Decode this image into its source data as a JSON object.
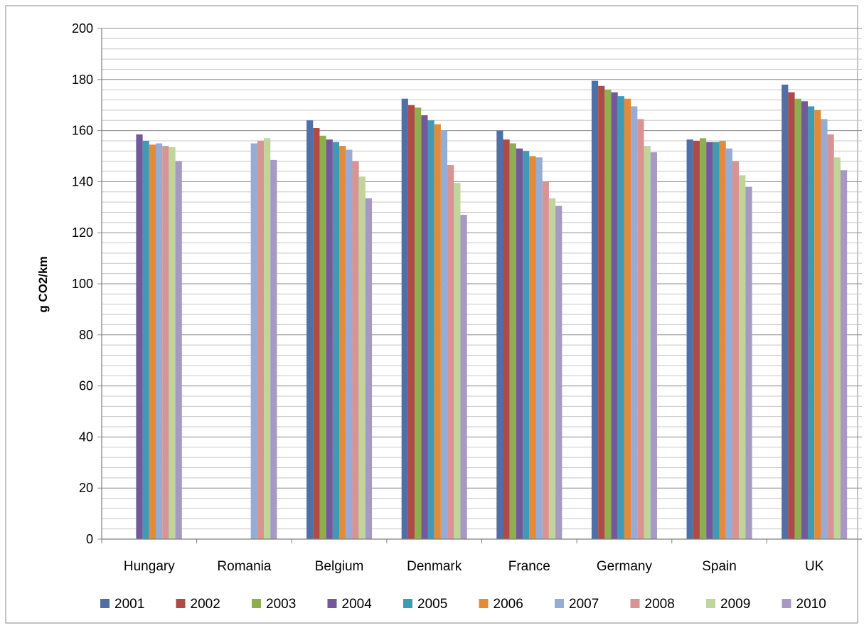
{
  "chart_data": {
    "type": "bar",
    "title": "",
    "ylabel": "g CO2/km",
    "xlabel": "",
    "ylim": [
      0,
      200
    ],
    "yticks": [
      0,
      20,
      40,
      60,
      80,
      100,
      120,
      140,
      160,
      180,
      200
    ],
    "minor_grid_step": 4,
    "grid": true,
    "legend_position": "bottom",
    "categories": [
      "Hungary",
      "Romania",
      "Belgium",
      "Denmark",
      "France",
      "Germany",
      "Spain",
      "UK"
    ],
    "series": [
      {
        "name": "2001",
        "color": "#4F6FA8",
        "values": [
          null,
          null,
          164,
          172.5,
          160,
          179.5,
          156.5,
          178
        ]
      },
      {
        "name": "2002",
        "color": "#B04A47",
        "values": [
          null,
          null,
          161,
          170,
          156.5,
          177.5,
          156,
          175
        ]
      },
      {
        "name": "2003",
        "color": "#8FAE4F",
        "values": [
          null,
          null,
          158,
          169,
          155,
          176,
          157,
          172.5
        ]
      },
      {
        "name": "2004",
        "color": "#74599A",
        "values": [
          158.5,
          null,
          156.5,
          166,
          153,
          175,
          155.5,
          171.5
        ]
      },
      {
        "name": "2005",
        "color": "#3F9BB5",
        "values": [
          156,
          null,
          155.5,
          164,
          152,
          173.5,
          155.5,
          169.5
        ]
      },
      {
        "name": "2006",
        "color": "#E58A36",
        "values": [
          154.5,
          null,
          154,
          162.5,
          150,
          172.5,
          156,
          168
        ]
      },
      {
        "name": "2007",
        "color": "#95ADD5",
        "values": [
          155,
          155,
          152.5,
          160,
          149.5,
          169.5,
          153,
          164.5
        ]
      },
      {
        "name": "2008",
        "color": "#D79492",
        "values": [
          154,
          156,
          148,
          146.5,
          140,
          164.5,
          148,
          158.5
        ]
      },
      {
        "name": "2009",
        "color": "#BFD59A",
        "values": [
          153.5,
          157,
          142,
          139.5,
          133.5,
          154,
          142.5,
          149.5
        ]
      },
      {
        "name": "2010",
        "color": "#A699C3",
        "values": [
          148,
          148.5,
          133.5,
          127,
          130.5,
          151.5,
          138,
          144.5
        ]
      }
    ]
  }
}
